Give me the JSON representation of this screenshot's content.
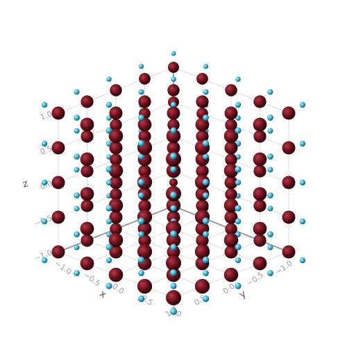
{
  "chart_data": {
    "type": "scatter3d",
    "description_axes": {
      "x": {
        "label": "x",
        "range": [
          -1,
          1
        ],
        "ticks": [
          "−1.0",
          "−0.5",
          "0.0",
          "0.5",
          "1.0"
        ]
      },
      "y": {
        "label": "y",
        "range": [
          -1,
          1
        ],
        "ticks": [
          "−1.0",
          "−0.5",
          "0.0",
          "0.5",
          "1.0"
        ]
      },
      "z": {
        "label": "z",
        "range": [
          -1,
          1
        ],
        "ticks": [
          "−1.0",
          "−0.5",
          "0.0",
          "0.5",
          "1.0"
        ]
      }
    },
    "grid_values": [
      -1,
      -0.5,
      0,
      0.5,
      1
    ],
    "grid": true,
    "markers": {
      "primary": {
        "shape": "sphere",
        "color": "#6b0f1a"
      },
      "secondary": {
        "shape": "sphere",
        "color": "#2aa7c9"
      },
      "offset_rule": "secondary marker sits at the primary position plus 0.12 times the position vector"
    },
    "colors": {
      "background": "#ffffff",
      "grid": "#dcdcdc",
      "axis_line": "#8a8a8a"
    }
  }
}
